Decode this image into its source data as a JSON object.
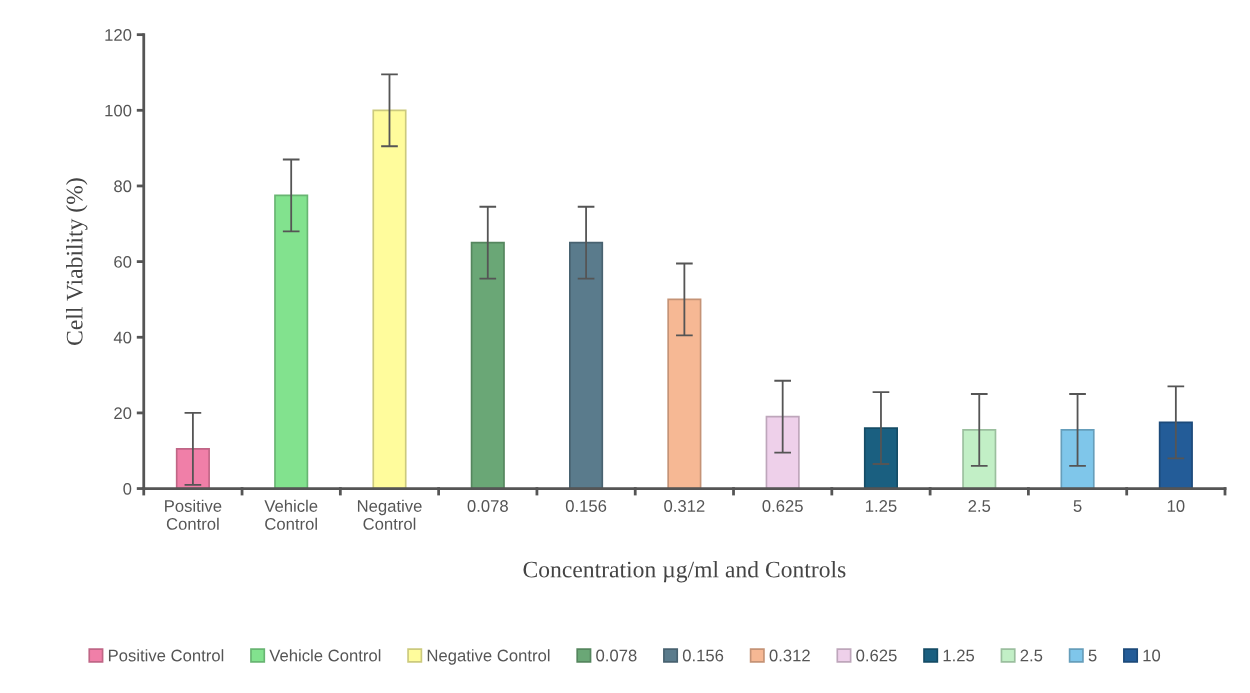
{
  "chart_data": {
    "type": "bar",
    "xlabel": "Concentration µg/ml and Controls",
    "ylabel": "Cell Viability (%)",
    "categories": [
      "Positive Control",
      "Vehicle Control",
      "Negative Control",
      "0.078",
      "0.156",
      "0.312",
      "0.625",
      "1.25",
      "2.5",
      "5",
      "10"
    ],
    "series": [
      {
        "name": "Positive Control",
        "color": "#f07fa8",
        "values": [
          10.5,
          null,
          null,
          null,
          null,
          null,
          null,
          null,
          null,
          null,
          null
        ],
        "errors": [
          9.5,
          null,
          null,
          null,
          null,
          null,
          null,
          null,
          null,
          null,
          null
        ]
      },
      {
        "name": "Vehicle Control",
        "color": "#82e28e",
        "values": [
          null,
          77.5,
          null,
          null,
          null,
          null,
          null,
          null,
          null,
          null,
          null
        ],
        "errors": [
          null,
          9.5,
          null,
          null,
          null,
          null,
          null,
          null,
          null,
          null,
          null
        ]
      },
      {
        "name": "Negative Control",
        "color": "#fffc9c",
        "values": [
          null,
          null,
          100,
          null,
          null,
          null,
          null,
          null,
          null,
          null,
          null
        ],
        "errors": [
          null,
          null,
          9.5,
          null,
          null,
          null,
          null,
          null,
          null,
          null,
          null
        ]
      },
      {
        "name": "0.078",
        "color": "#6aa776",
        "values": [
          null,
          null,
          null,
          65,
          null,
          null,
          null,
          null,
          null,
          null,
          null
        ],
        "errors": [
          null,
          null,
          null,
          9.5,
          null,
          null,
          null,
          null,
          null,
          null,
          null
        ]
      },
      {
        "name": "0.156",
        "color": "#5a7b8c",
        "values": [
          null,
          null,
          null,
          null,
          65,
          null,
          null,
          null,
          null,
          null,
          null
        ],
        "errors": [
          null,
          null,
          null,
          null,
          9.5,
          null,
          null,
          null,
          null,
          null,
          null
        ]
      },
      {
        "name": "0.312",
        "color": "#f6b894",
        "values": [
          null,
          null,
          null,
          null,
          null,
          50,
          null,
          null,
          null,
          null,
          null
        ],
        "errors": [
          null,
          null,
          null,
          null,
          null,
          9.5,
          null,
          null,
          null,
          null,
          null
        ]
      },
      {
        "name": "0.625",
        "color": "#eed0ea",
        "values": [
          null,
          null,
          null,
          null,
          null,
          null,
          19,
          null,
          null,
          null,
          null
        ],
        "errors": [
          null,
          null,
          null,
          null,
          null,
          null,
          9.5,
          null,
          null,
          null,
          null
        ]
      },
      {
        "name": "1.25",
        "color": "#1a5f80",
        "values": [
          null,
          null,
          null,
          null,
          null,
          null,
          null,
          16,
          null,
          null,
          null
        ],
        "errors": [
          null,
          null,
          null,
          null,
          null,
          null,
          null,
          9.5,
          null,
          null,
          null
        ]
      },
      {
        "name": "2.5",
        "color": "#c2efc6",
        "values": [
          null,
          null,
          null,
          null,
          null,
          null,
          null,
          null,
          15.5,
          null,
          null
        ],
        "errors": [
          null,
          null,
          null,
          null,
          null,
          null,
          null,
          null,
          9.5,
          null,
          null
        ]
      },
      {
        "name": "5",
        "color": "#7fc6ea",
        "values": [
          null,
          null,
          null,
          null,
          null,
          null,
          null,
          null,
          null,
          15.5,
          null
        ],
        "errors": [
          null,
          null,
          null,
          null,
          null,
          null,
          null,
          null,
          null,
          9.5,
          null
        ]
      },
      {
        "name": "10",
        "color": "#235c98",
        "values": [
          null,
          null,
          null,
          null,
          null,
          null,
          null,
          null,
          null,
          null,
          17.5
        ],
        "errors": [
          null,
          null,
          null,
          null,
          null,
          null,
          null,
          null,
          null,
          null,
          9.5
        ]
      }
    ],
    "ylim": [
      0,
      120
    ],
    "yticks": [
      0,
      20,
      40,
      60,
      80,
      100,
      120
    ],
    "grid": false,
    "legend": "bottom"
  }
}
